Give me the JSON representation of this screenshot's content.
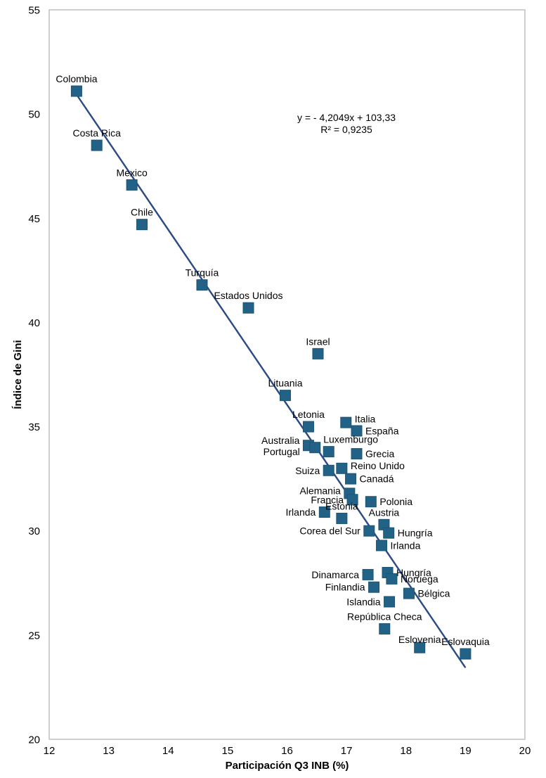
{
  "colors": {
    "marker": "#236287",
    "marker_edge": "#1d5474",
    "trendline": "#2a4a85",
    "axis": "#bfbfbf",
    "text": "#000000",
    "background": "#ffffff"
  },
  "chart_data": {
    "type": "scatter",
    "title": "",
    "xlabel": "Participación Q3 INB (%)",
    "ylabel": "Índice de Gini",
    "xlim": [
      12,
      20
    ],
    "ylim": [
      20,
      55
    ],
    "xticks": [
      12,
      13,
      14,
      15,
      16,
      17,
      18,
      19,
      20
    ],
    "yticks": [
      20,
      25,
      30,
      35,
      40,
      45,
      50,
      55
    ],
    "grid": false,
    "legend": false,
    "equation": {
      "line1": "y =  - 4,2049x + 103,33",
      "line2": "R²  = 0,9235"
    },
    "trendline": {
      "slope": -4.2049,
      "intercept": 103.33,
      "x_start": 12.46,
      "x_end": 19.0
    },
    "points": [
      {
        "label": "Colombia",
        "x": 12.46,
        "y": 51.1,
        "pos": "above"
      },
      {
        "label": "Costa Rica",
        "x": 12.8,
        "y": 48.5,
        "pos": "above"
      },
      {
        "label": "Mexico",
        "x": 13.39,
        "y": 46.6,
        "pos": "above"
      },
      {
        "label": "Chile",
        "x": 13.56,
        "y": 44.7,
        "pos": "above"
      },
      {
        "label": "Turquía",
        "x": 14.57,
        "y": 41.8,
        "pos": "above"
      },
      {
        "label": "Estados Unidos",
        "x": 15.35,
        "y": 40.7,
        "pos": "above"
      },
      {
        "label": "Israel",
        "x": 16.52,
        "y": 38.5,
        "pos": "above"
      },
      {
        "label": "Lituania",
        "x": 15.97,
        "y": 36.5,
        "pos": "above"
      },
      {
        "label": "Letonia",
        "x": 16.36,
        "y": 35.0,
        "pos": "above"
      },
      {
        "label": "Italia",
        "x": 16.99,
        "y": 35.2,
        "pos": "right",
        "dy": -5
      },
      {
        "label": "España",
        "x": 17.17,
        "y": 34.8,
        "pos": "right"
      },
      {
        "label": "Australia",
        "x": 16.36,
        "y": 34.1,
        "pos": "left",
        "dy": -7
      },
      {
        "label": "Portugal",
        "x": 16.47,
        "y": 34.0,
        "pos": "left",
        "dx": -9,
        "dy": 6
      },
      {
        "label": "Luxemburgo",
        "x": 16.7,
        "y": 33.8,
        "pos": "aboveL"
      },
      {
        "label": "Grecia",
        "x": 17.17,
        "y": 33.7,
        "pos": "right"
      },
      {
        "label": "Suiza",
        "x": 16.7,
        "y": 32.9,
        "pos": "left"
      },
      {
        "label": "Reino Unido",
        "x": 16.92,
        "y": 33.0,
        "pos": "right",
        "dy": -4
      },
      {
        "label": "Canadá",
        "x": 17.07,
        "y": 32.5,
        "pos": "right"
      },
      {
        "label": "Alemania",
        "x": 17.05,
        "y": 31.8,
        "pos": "left",
        "dy": -4
      },
      {
        "label": "Francia",
        "x": 17.1,
        "y": 31.5,
        "pos": "left"
      },
      {
        "label": "Polonia",
        "x": 17.41,
        "y": 31.4,
        "pos": "right"
      },
      {
        "label": "Irlanda",
        "x": 16.63,
        "y": 30.9,
        "pos": "left"
      },
      {
        "label": "Estonia",
        "x": 16.92,
        "y": 30.6,
        "pos": "above"
      },
      {
        "label": "Austria",
        "x": 17.63,
        "y": 30.3,
        "pos": "above"
      },
      {
        "label": "Corea del Sur",
        "x": 17.38,
        "y": 30.0,
        "pos": "left"
      },
      {
        "label": "Hungría",
        "x": 17.71,
        "y": 29.9,
        "pos": "right"
      },
      {
        "label": "Irlanda",
        "x": 17.59,
        "y": 29.3,
        "pos": "right"
      },
      {
        "label": "Hungría",
        "x": 17.69,
        "y": 28.0,
        "pos": "right"
      },
      {
        "label": "Dinamarca",
        "x": 17.36,
        "y": 27.9,
        "pos": "left"
      },
      {
        "label": "Noruega",
        "x": 17.76,
        "y": 27.7,
        "pos": "right"
      },
      {
        "label": "Finlandia",
        "x": 17.46,
        "y": 27.3,
        "pos": "left"
      },
      {
        "label": "Bélgica",
        "x": 18.05,
        "y": 27.0,
        "pos": "right"
      },
      {
        "label": "Islandia",
        "x": 17.72,
        "y": 26.6,
        "pos": "left"
      },
      {
        "label": "República Checa",
        "x": 17.64,
        "y": 25.3,
        "pos": "above"
      },
      {
        "label": "Eslovenia",
        "x": 18.23,
        "y": 24.4,
        "pos": "above",
        "dy": 6
      },
      {
        "label": "Eslovaquia",
        "x": 19.0,
        "y": 24.1,
        "pos": "above"
      }
    ]
  }
}
